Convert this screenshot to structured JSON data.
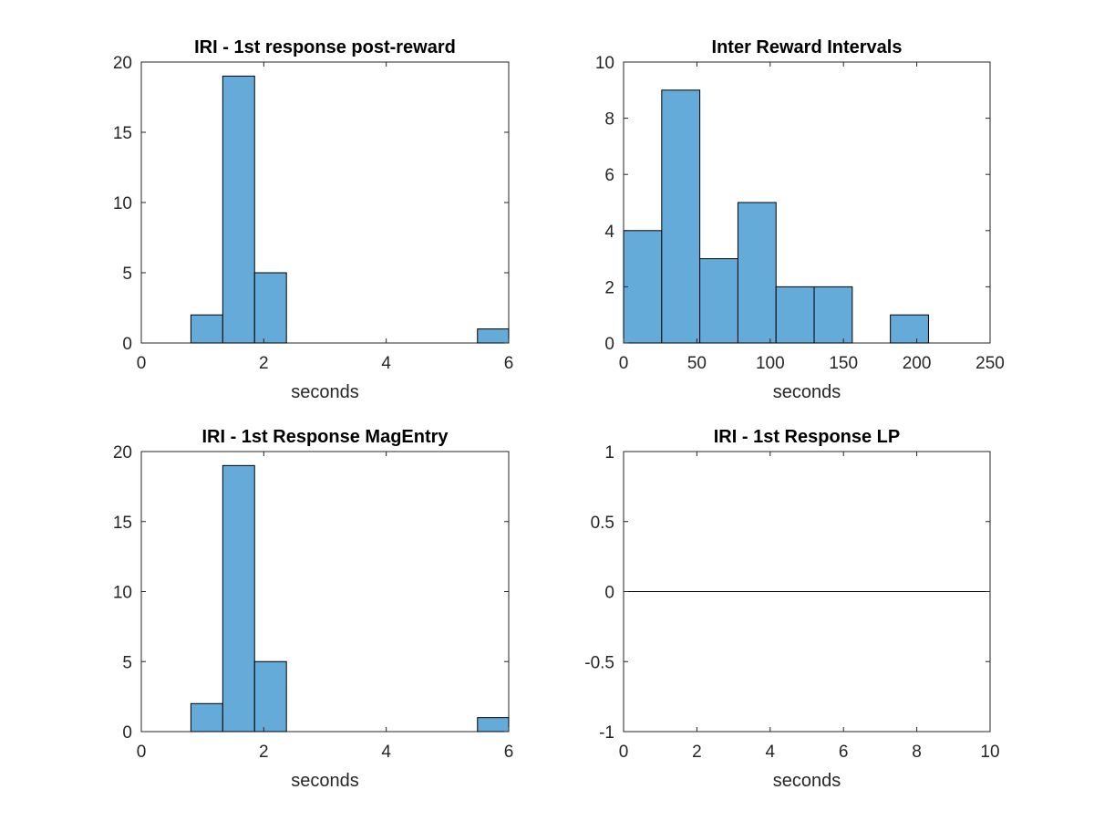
{
  "colors": {
    "bar_fill": "#65abd9",
    "bar_edge": "#000000",
    "axis": "#262626"
  },
  "chart_data": [
    {
      "type": "bar",
      "title": "IRI - 1st response post-reward",
      "xlabel": "seconds",
      "ylabel": "",
      "xlim": [
        0,
        6
      ],
      "ylim": [
        0,
        20
      ],
      "xticks": [
        "0",
        "2",
        "4",
        "6"
      ],
      "yticks": [
        "0",
        "5",
        "10",
        "15",
        "20"
      ],
      "bin_edges": [
        0.81,
        1.33,
        1.85,
        2.37,
        2.89,
        3.41,
        3.93,
        4.45,
        4.97,
        5.49,
        6.01
      ],
      "values": [
        2,
        19,
        5,
        0,
        0,
        0,
        0,
        0,
        0,
        1
      ],
      "grid": false
    },
    {
      "type": "bar",
      "title": "Inter Reward Intervals",
      "xlabel": "seconds",
      "ylabel": "",
      "xlim": [
        0,
        250
      ],
      "ylim": [
        0,
        10
      ],
      "xticks": [
        "0",
        "50",
        "100",
        "150",
        "200",
        "250"
      ],
      "yticks": [
        "0",
        "2",
        "4",
        "6",
        "8",
        "10"
      ],
      "bin_edges": [
        0,
        26,
        52,
        78,
        104,
        130,
        156,
        182,
        208
      ],
      "values": [
        4,
        9,
        3,
        5,
        2,
        2,
        0,
        1
      ],
      "grid": false
    },
    {
      "type": "bar",
      "title": "IRI - 1st Response MagEntry",
      "xlabel": "seconds",
      "ylabel": "",
      "xlim": [
        0,
        6
      ],
      "ylim": [
        0,
        20
      ],
      "xticks": [
        "0",
        "2",
        "4",
        "6"
      ],
      "yticks": [
        "0",
        "5",
        "10",
        "15",
        "20"
      ],
      "bin_edges": [
        0.81,
        1.33,
        1.85,
        2.37,
        2.89,
        3.41,
        3.93,
        4.45,
        4.97,
        5.49,
        6.01
      ],
      "values": [
        2,
        19,
        5,
        0,
        0,
        0,
        0,
        0,
        0,
        1
      ],
      "grid": false
    },
    {
      "type": "bar",
      "title": "IRI - 1st Response LP",
      "xlabel": "seconds",
      "ylabel": "",
      "xlim": [
        0,
        10
      ],
      "ylim": [
        -1,
        1
      ],
      "xticks": [
        "0",
        "2",
        "4",
        "6",
        "8",
        "10"
      ],
      "yticks": [
        "-1",
        "-0.5",
        "0",
        "0.5",
        "1"
      ],
      "bin_edges": [],
      "values": [],
      "baseline": 0,
      "grid": false
    }
  ]
}
